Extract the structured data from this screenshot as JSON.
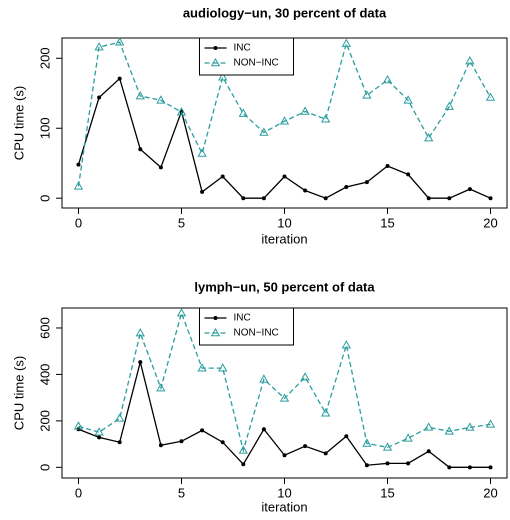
{
  "chart_data": [
    {
      "type": "line",
      "title": "audiology−un, 30 percent of data",
      "x_label": "iteration",
      "y_label": "CPU time (s)",
      "x": [
        0,
        1,
        2,
        3,
        4,
        5,
        6,
        7,
        8,
        9,
        10,
        11,
        12,
        13,
        14,
        15,
        16,
        17,
        18,
        19,
        20
      ],
      "series": [
        {
          "name": "INC",
          "color": "#000000",
          "linestyle": "solid",
          "marker": "circle",
          "values": [
            48,
            144,
            171,
            70,
            44,
            124,
            9,
            31,
            0,
            0,
            31,
            11,
            0,
            16,
            23,
            46,
            34,
            0,
            0,
            13,
            0
          ]
        },
        {
          "name": "NON−INC",
          "color": "#2a9d9d",
          "linestyle": "dashed",
          "marker": "triangle",
          "values": [
            17,
            216,
            223,
            146,
            140,
            123,
            64,
            173,
            121,
            94,
            110,
            124,
            113,
            221,
            147,
            169,
            140,
            86,
            131,
            196,
            144
          ]
        }
      ],
      "xlim": [
        -0.8,
        20.8
      ],
      "xticks": [
        0,
        5,
        10,
        15,
        20
      ],
      "ylim": [
        -14,
        229
      ],
      "yticks": [
        0,
        100,
        200
      ],
      "legend": "top"
    },
    {
      "type": "line",
      "title": "lymph−un, 50 percent of data",
      "x_label": "iteration",
      "y_label": "CPU time (s)",
      "x": [
        0,
        1,
        2,
        3,
        4,
        5,
        6,
        7,
        8,
        9,
        10,
        11,
        12,
        13,
        14,
        15,
        16,
        17,
        18,
        19,
        20
      ],
      "series": [
        {
          "name": "INC",
          "color": "#000000",
          "linestyle": "solid",
          "marker": "circle",
          "values": [
            164,
            129,
            108,
            453,
            95,
            112,
            159,
            108,
            13,
            164,
            52,
            91,
            60,
            134,
            9,
            17,
            17,
            69,
            0,
            0,
            0
          ]
        },
        {
          "name": "NON−INC",
          "color": "#2a9d9d",
          "linestyle": "dashed",
          "marker": "triangle",
          "values": [
            177,
            151,
            211,
            578,
            341,
            664,
            427,
            427,
            73,
            379,
            297,
            388,
            233,
            526,
            103,
            86,
            125,
            172,
            155,
            172,
            185
          ]
        }
      ],
      "xlim": [
        -0.8,
        20.8
      ],
      "xticks": [
        0,
        5,
        10,
        15,
        20
      ],
      "ylim": [
        -46,
        686
      ],
      "yticks": [
        0,
        200,
        400,
        600
      ],
      "legend": "top"
    }
  ]
}
